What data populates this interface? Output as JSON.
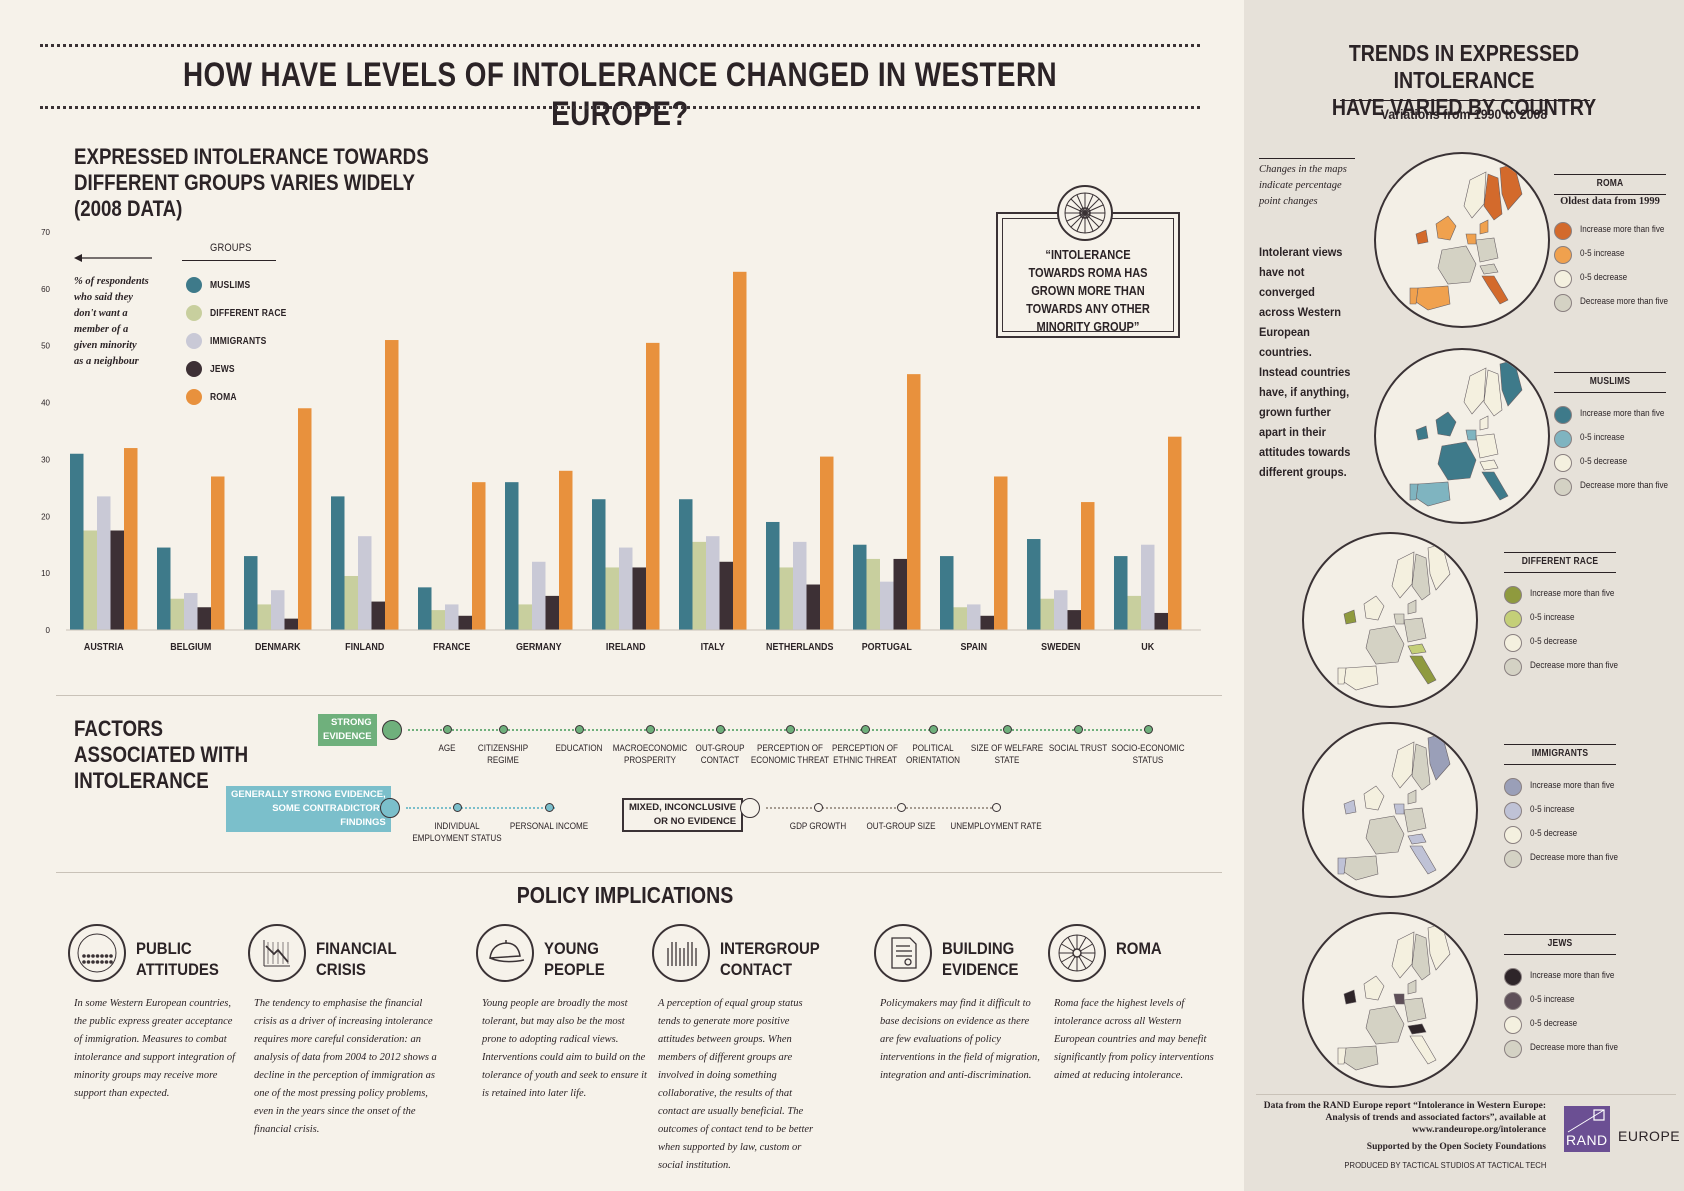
{
  "title": "HOW HAVE LEVELS OF INTOLERANCE CHANGED IN WESTERN EUROPE?",
  "chart_section": {
    "title_lines": [
      "EXPRESSED INTOLERANCE TOWARDS",
      "DIFFERENT GROUPS VARIES WIDELY",
      "(2008 DATA)"
    ],
    "axis_note_lines": [
      "% of respondents",
      "who said they",
      "don't want a",
      "member of a",
      "given minority",
      "as a neighbour"
    ],
    "legend_title": "GROUPS",
    "quote": "“INTOLERANCE TOWARDS ROMA HAS GROWN MORE THAN TOWARDS ANY OTHER MINORITY GROUP”"
  },
  "chart_data": {
    "type": "bar",
    "categories": [
      "AUSTRIA",
      "BELGIUM",
      "DENMARK",
      "FINLAND",
      "FRANCE",
      "GERMANY",
      "IRELAND",
      "ITALY",
      "NETHERLANDS",
      "PORTUGAL",
      "SPAIN",
      "SWEDEN",
      "UK"
    ],
    "ylim": [
      0,
      70
    ],
    "yticks": [
      0,
      10,
      20,
      30,
      40,
      50,
      60,
      70
    ],
    "legend_placement": "top-left",
    "series": [
      {
        "name": "MUSLIMS",
        "color": "#3e7a8a",
        "values": [
          31,
          14.5,
          13,
          23.5,
          7.5,
          26,
          23,
          23,
          19,
          15,
          13,
          16,
          13
        ]
      },
      {
        "name": "DIFFERENT RACE",
        "color": "#c8cf9e",
        "values": [
          17.5,
          5.5,
          4.5,
          9.5,
          3.5,
          4.5,
          11,
          15.5,
          11,
          12.5,
          4,
          5.5,
          6
        ]
      },
      {
        "name": "IMMIGRANTS",
        "color": "#c9c9d6",
        "values": [
          23.5,
          6.5,
          7,
          16.5,
          4.5,
          12,
          14.5,
          16.5,
          15.5,
          8.5,
          4.5,
          7,
          15
        ]
      },
      {
        "name": "JEWS",
        "color": "#3d3035",
        "values": [
          17.5,
          4,
          2,
          5,
          2.5,
          6,
          11,
          12,
          8,
          12.5,
          2.5,
          3.5,
          3
        ]
      },
      {
        "name": "ROMA",
        "color": "#e8913d",
        "values": [
          32,
          27,
          39,
          51,
          26,
          28,
          50.5,
          63,
          30.5,
          45,
          27,
          22.5,
          34
        ]
      }
    ]
  },
  "factors": {
    "title_lines": [
      "FACTORS",
      "ASSOCIATED WITH",
      "INTOLERANCE"
    ],
    "strong_tag": [
      "STRONG",
      "EVIDENCE"
    ],
    "strong_items": [
      [
        "AGE"
      ],
      [
        "CITIZENSHIP",
        "REGIME"
      ],
      [
        "EDUCATION"
      ],
      [
        "MACROECONOMIC",
        "PROSPERITY"
      ],
      [
        "OUT-GROUP",
        "CONTACT"
      ],
      [
        "PERCEPTION OF",
        "ECONOMIC THREAT"
      ],
      [
        "PERCEPTION OF",
        "ETHNIC THREAT"
      ],
      [
        "POLITICAL",
        "ORIENTATION"
      ],
      [
        "SIZE OF WELFARE",
        "STATE"
      ],
      [
        "SOCIAL TRUST"
      ],
      [
        "SOCIO-ECONOMIC",
        "STATUS"
      ]
    ],
    "general_tag": [
      "GENERALLY STRONG EVIDENCE,",
      "SOME CONTRADICTORY",
      "FINDINGS"
    ],
    "general_items": [
      [
        "INDIVIDUAL",
        "EMPLOYMENT STATUS"
      ],
      [
        "PERSONAL INCOME"
      ]
    ],
    "mixed_tag": [
      "MIXED, INCONCLUSIVE",
      "OR NO EVIDENCE"
    ],
    "mixed_items": [
      [
        "GDP GROWTH"
      ],
      [
        "OUT-GROUP SIZE"
      ],
      [
        "UNEMPLOYMENT RATE"
      ]
    ]
  },
  "policy": {
    "title": "POLICY IMPLICATIONS",
    "items": [
      {
        "head": [
          "PUBLIC",
          "ATTITUDES"
        ],
        "icon": "crowd-icon",
        "text": "In some Western European countries, the public express greater acceptance of immigration. Measures to combat intolerance and support integration of minority groups may receive more support than expected."
      },
      {
        "head": [
          "FINANCIAL",
          "CRISIS"
        ],
        "icon": "declining-chart-icon",
        "text": "The tendency to emphasise the financial crisis as a driver of increasing intolerance requires more careful consideration: an analysis of data from 2004 to 2012 shows a decline in the perception of immigration as one of the most pressing policy problems,  even in the years since the onset of the financial crisis."
      },
      {
        "head": [
          "YOUNG",
          "PEOPLE"
        ],
        "icon": "cap-icon",
        "text": "Young people are broadly the most tolerant, but may also be the most prone to adopting radical views. Interventions could aim to build on the tolerance of youth and seek to ensure it is retained into later life."
      },
      {
        "head": [
          "INTERGROUP",
          "CONTACT"
        ],
        "icon": "hands-icon",
        "text": "A perception of equal group status tends to generate more positive attitudes between groups. When members of different groups are involved in doing something collaborative, the results of that contact are usually beneficial. The outcomes of contact tend to be better when supported by law, custom or social institution."
      },
      {
        "head": [
          "BUILDING",
          "EVIDENCE"
        ],
        "icon": "document-icon",
        "text": "Policymakers may find it difficult to base decisions on evidence as there are few evaluations of policy interventions in the field of migration, integration and anti-discrimination."
      },
      {
        "head": [
          "ROMA",
          ""
        ],
        "icon": "wheel-icon",
        "text": "Roma face the highest levels of intolerance across all Western European countries and may benefit significantly from policy interventions aimed at reducing intolerance."
      }
    ]
  },
  "right": {
    "title_lines": [
      "TRENDS IN EXPRESSED INTOLERANCE",
      "HAVE VARIED BY COUNTRY"
    ],
    "subtitle": "Variations from 1990 to 2008",
    "map_note_lines": [
      "Changes in the maps",
      "indicate percentage",
      "point changes"
    ],
    "body_lines": [
      "Intolerant views",
      "have not converged",
      "across Western",
      "European countries.",
      "Instead countries",
      "have, if anything,",
      "grown further",
      "apart in their",
      "attitudes towards",
      "different groups."
    ],
    "maps": [
      {
        "group": "ROMA",
        "note": "Oldest data from 1999",
        "colors": [
          "#d36a2c",
          "#f0a14e",
          "#f4f0df",
          "#d4d2c4"
        ]
      },
      {
        "group": "MUSLIMS",
        "note": "",
        "colors": [
          "#3e7a8a",
          "#7fb4c0",
          "#f4f0df",
          "#d4d2c4"
        ]
      },
      {
        "group": "DIFFERENT RACE",
        "note": "",
        "colors": [
          "#8f9a3e",
          "#c4cf78",
          "#f4f0df",
          "#d4d2c4"
        ]
      },
      {
        "group": "IMMIGRANTS",
        "note": "",
        "colors": [
          "#9a9fb8",
          "#bfc2d6",
          "#f4f0df",
          "#d4d2c4"
        ]
      },
      {
        "group": "JEWS",
        "note": "",
        "colors": [
          "#2e2529",
          "#5e4f58",
          "#f4f0df",
          "#d4d2c4"
        ]
      }
    ],
    "key_labels": [
      "Increase more than five",
      "0-5 increase",
      "0-5 decrease",
      "Decrease more than five"
    ],
    "footer_lines": [
      "Data from the RAND Europe report “Intolerance in Western Europe:",
      "Analysis of trends and associated factors”, available at",
      "www.randeurope.org/intolerance"
    ],
    "supported": "Supported by the Open Society Foundations",
    "produced": "PRODUCED BY TACTICAL STUDIOS AT TACTICAL TECH",
    "logo_text": "RAND",
    "logo_suffix": "EUROPE"
  }
}
